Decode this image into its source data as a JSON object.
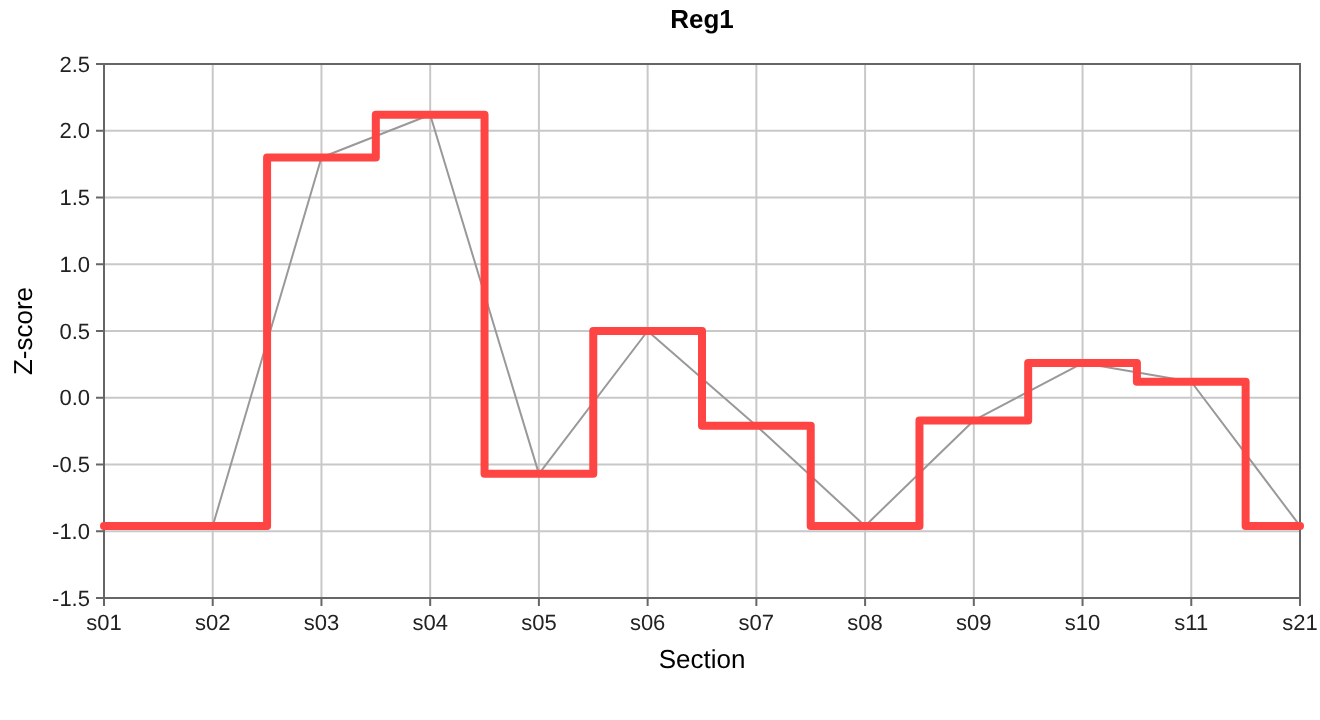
{
  "chart_data": {
    "type": "step",
    "title": "Reg1",
    "xlabel": "Section",
    "ylabel": "Z-score",
    "categories": [
      "s01",
      "s02",
      "s03",
      "s04",
      "s05",
      "s06",
      "s07",
      "s08",
      "s09",
      "s10",
      "s11",
      "s21"
    ],
    "series": [
      {
        "type": "line",
        "color": "#999999",
        "values": [
          -0.96,
          -0.96,
          1.8,
          2.12,
          -0.57,
          0.5,
          -0.21,
          -0.96,
          -0.17,
          0.26,
          0.12,
          -0.96
        ]
      },
      {
        "type": "step",
        "color": "#ff4444",
        "values": [
          -0.96,
          -0.96,
          1.8,
          2.12,
          -0.57,
          0.5,
          -0.21,
          -0.96,
          -0.17,
          0.26,
          0.12,
          -0.96
        ]
      }
    ],
    "ylim": [
      -1.5,
      2.5
    ],
    "yticks": [
      {
        "value": -1.5,
        "label": "-1.5"
      },
      {
        "value": -1,
        "label": "-1.0"
      },
      {
        "value": -0.5,
        "label": "-0.5"
      },
      {
        "value": 0,
        "label": "0.0"
      },
      {
        "value": 0.5,
        "label": "0.5"
      },
      {
        "value": 1,
        "label": "1.0"
      },
      {
        "value": 1.5,
        "label": "1.5"
      },
      {
        "value": 2,
        "label": "2.0"
      },
      {
        "value": 2.5,
        "label": "2.5"
      }
    ],
    "grid": true,
    "marker": "none"
  }
}
